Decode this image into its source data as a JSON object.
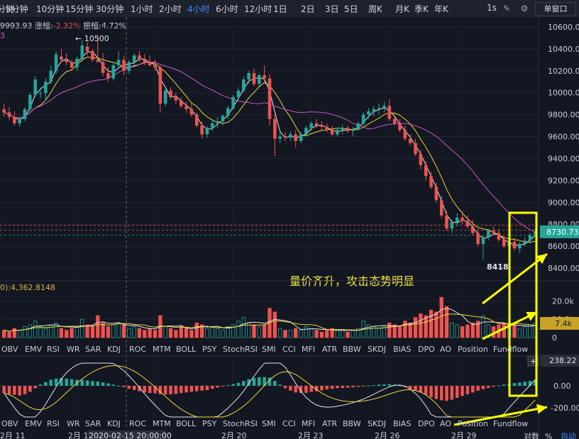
{
  "timeframes": [
    "分钟",
    "5分钟",
    "10分钟",
    "15分钟",
    "30分钟",
    "1小时",
    "2小时",
    "4小时",
    "6小时",
    "12小时",
    "1日",
    "2日",
    "3日",
    "5日",
    "周K",
    "月K",
    "季K",
    "年K"
  ],
  "active_timeframe": "4小时",
  "toolbar": {
    "interval_btn": "1s",
    "single_window": "单窗口"
  },
  "stats": {
    "price": "9993.93",
    "change_label": "涨幅",
    "change": "-2.32%",
    "amp_label": "振幅",
    "amp": "4.72%",
    "partial": "3"
  },
  "price_axis": {
    "ticks": [
      "10600.00",
      "10400.00",
      "10200.00",
      "10000.00",
      "9800.00",
      "9600.00",
      "9400.00",
      "9200.00",
      "9000.00",
      "8800.00",
      "8600.00",
      "8400.00"
    ],
    "current": "8730.73"
  },
  "annotations": {
    "high_label": "← 10500",
    "low_label": "8418",
    "caption": "量价齐升，攻击态势明显"
  },
  "volume": {
    "header": "0):4,362.8148",
    "ticks": [
      "20.0k",
      "10.0k",
      "0"
    ],
    "current": "7.4k"
  },
  "macd": {
    "ticks": [
      "238.22",
      "0.00",
      "-200.00"
    ],
    "current": "238.22"
  },
  "indicator_tabs": [
    "OBV",
    "EMV",
    "RSI",
    "WR",
    "SAR",
    "KDJ",
    "ROC",
    "MTM",
    "BOLL",
    "PSY",
    "StochRSI",
    "SMI",
    "CCI",
    "MFI",
    "ATR",
    "BBW",
    "SKDJ",
    "BIAS",
    "DPO",
    "AO",
    "Position",
    "Fundflow"
  ],
  "date_axis": [
    "2月 11",
    "2月 1",
    "2020-02-15 20:00:00",
    "2月 20",
    "2月 23",
    "2月 26",
    "2月 29"
  ],
  "bottom_right": {
    "a": "对数",
    "b": "%",
    "c": "自动"
  },
  "colors": {
    "up": "#26a69a",
    "down": "#ef5350",
    "ma1": "#e6e6e6",
    "ma2": "#f0d43a",
    "ma3": "#ce53c9",
    "highlight": "#ffff00",
    "active": "#3d8bfd"
  },
  "chart_data": {
    "type": "candlestick",
    "y_range": [
      8300,
      10700
    ],
    "candles": [
      [
        9850,
        9900,
        9780,
        9820
      ],
      [
        9820,
        9870,
        9750,
        9780
      ],
      [
        9780,
        9830,
        9700,
        9720
      ],
      [
        9720,
        9780,
        9690,
        9760
      ],
      [
        9760,
        9870,
        9740,
        9850
      ],
      [
        9850,
        10000,
        9830,
        9980
      ],
      [
        9980,
        10150,
        9960,
        10120
      ],
      [
        9990,
        10050,
        9950,
        9996
      ],
      [
        9996,
        10130,
        9940,
        10100
      ],
      [
        10100,
        10250,
        10080,
        10200
      ],
      [
        10200,
        10380,
        10170,
        10350
      ],
      [
        10330,
        10400,
        10280,
        10300
      ],
      [
        10300,
        10360,
        10250,
        10280
      ],
      [
        10280,
        10300,
        10200,
        10230
      ],
      [
        10230,
        10330,
        10200,
        10310
      ],
      [
        10310,
        10480,
        10280,
        10430
      ],
      [
        10420,
        10460,
        10340,
        10380
      ],
      [
        10380,
        10400,
        10280,
        10300
      ],
      [
        10300,
        10520,
        10280,
        10280
      ],
      [
        10280,
        10360,
        10150,
        10180
      ],
      [
        10180,
        10230,
        10100,
        10130
      ],
      [
        10130,
        10280,
        10110,
        10250
      ],
      [
        10250,
        10380,
        10220,
        10300
      ],
      [
        10300,
        10340,
        10160,
        10200
      ],
      [
        10200,
        10300,
        10170,
        10280
      ],
      [
        10280,
        10360,
        10250,
        10340
      ],
      [
        10340,
        10380,
        10280,
        10300
      ],
      [
        10300,
        10350,
        10250,
        10280
      ],
      [
        10280,
        10340,
        10240,
        10250
      ],
      [
        10250,
        10300,
        10200,
        10230
      ],
      [
        10230,
        10250,
        9820,
        9900
      ],
      [
        9900,
        10050,
        9880,
        10020
      ],
      [
        10020,
        10050,
        9940,
        9960
      ],
      [
        9960,
        10000,
        9900,
        9930
      ],
      [
        9930,
        9960,
        9860,
        9880
      ],
      [
        9880,
        9920,
        9820,
        9850
      ],
      [
        9850,
        9900,
        9780,
        9800
      ],
      [
        9800,
        9820,
        9680,
        9700
      ],
      [
        9700,
        9740,
        9580,
        9620
      ],
      [
        9620,
        9700,
        9590,
        9680
      ],
      [
        9680,
        9760,
        9650,
        9720
      ],
      [
        9720,
        9780,
        9680,
        9740
      ],
      [
        9740,
        9800,
        9700,
        9790
      ],
      [
        9790,
        9880,
        9760,
        9860
      ],
      [
        9860,
        9980,
        9840,
        9960
      ],
      [
        9960,
        10050,
        9930,
        10020
      ],
      [
        10020,
        10150,
        10000,
        10120
      ],
      [
        10120,
        10200,
        10080,
        10180
      ],
      [
        10180,
        10220,
        10060,
        10080
      ],
      [
        10080,
        10180,
        10060,
        10160
      ],
      [
        10160,
        10250,
        10100,
        10130
      ],
      [
        10130,
        10170,
        9700,
        9760
      ],
      [
        9760,
        9800,
        9420,
        9580
      ],
      [
        9580,
        9650,
        9540,
        9600
      ],
      [
        9600,
        9640,
        9560,
        9590
      ],
      [
        9590,
        9650,
        9560,
        9620
      ],
      [
        9620,
        9660,
        9500,
        9560
      ],
      [
        9560,
        9640,
        9540,
        9620
      ],
      [
        9620,
        9700,
        9600,
        9680
      ],
      [
        9680,
        9740,
        9650,
        9720
      ],
      [
        9720,
        9760,
        9680,
        9700
      ],
      [
        9700,
        9740,
        9660,
        9690
      ],
      [
        9690,
        9720,
        9640,
        9660
      ],
      [
        9660,
        9700,
        9600,
        9620
      ],
      [
        9620,
        9680,
        9600,
        9660
      ],
      [
        9660,
        9710,
        9620,
        9680
      ],
      [
        9680,
        9700,
        9630,
        9650
      ],
      [
        9650,
        9690,
        9600,
        9670
      ],
      [
        9670,
        9740,
        9650,
        9720
      ],
      [
        9720,
        9820,
        9700,
        9800
      ],
      [
        9800,
        9860,
        9760,
        9830
      ],
      [
        9830,
        9880,
        9780,
        9850
      ],
      [
        9850,
        9900,
        9800,
        9860
      ],
      [
        9860,
        9920,
        9820,
        9880
      ],
      [
        9880,
        9940,
        9740,
        9760
      ],
      [
        9760,
        9800,
        9700,
        9720
      ],
      [
        9720,
        9760,
        9640,
        9660
      ],
      [
        9660,
        9700,
        9560,
        9580
      ],
      [
        9580,
        9620,
        9520,
        9540
      ],
      [
        9540,
        9580,
        9420,
        9440
      ],
      [
        9440,
        9480,
        9300,
        9340
      ],
      [
        9340,
        9380,
        9200,
        9240
      ],
      [
        9240,
        9280,
        9120,
        9140
      ],
      [
        9140,
        9180,
        9000,
        9020
      ],
      [
        9020,
        9060,
        8860,
        8880
      ],
      [
        8880,
        8920,
        8740,
        8760
      ],
      [
        8760,
        8840,
        8720,
        8820
      ],
      [
        8820,
        8900,
        8780,
        8860
      ],
      [
        8860,
        8920,
        8800,
        8830
      ],
      [
        8830,
        8880,
        8760,
        8780
      ],
      [
        8780,
        8840,
        8700,
        8720
      ],
      [
        8720,
        8760,
        8600,
        8620
      ],
      [
        8620,
        8700,
        8480,
        8680
      ],
      [
        8680,
        8760,
        8650,
        8740
      ],
      [
        8740,
        8780,
        8700,
        8720
      ],
      [
        8720,
        8760,
        8640,
        8660
      ],
      [
        8660,
        8700,
        8580,
        8600
      ],
      [
        8600,
        8660,
        8560,
        8640
      ],
      [
        8640,
        8680,
        8560,
        8580
      ],
      [
        8580,
        8640,
        8540,
        8620
      ],
      [
        8620,
        8680,
        8600,
        8650
      ],
      [
        8650,
        8720,
        8620,
        8700
      ],
      [
        8700,
        8760,
        8690,
        8731
      ]
    ],
    "volumes": [
      4,
      3,
      5,
      4,
      6,
      7,
      9,
      6,
      5,
      7,
      8,
      5,
      4,
      5,
      6,
      10,
      7,
      6,
      12,
      8,
      6,
      7,
      8,
      7,
      5,
      6,
      5,
      4,
      5,
      4,
      12,
      6,
      5,
      4,
      6,
      5,
      4,
      8,
      7,
      5,
      6,
      5,
      4,
      6,
      7,
      9,
      11,
      8,
      7,
      6,
      7,
      16,
      14,
      5,
      4,
      4,
      5,
      4,
      6,
      5,
      4,
      3,
      4,
      5,
      4,
      4,
      3,
      4,
      5,
      9,
      7,
      6,
      5,
      6,
      8,
      7,
      6,
      9,
      8,
      11,
      13,
      12,
      15,
      14,
      22,
      17,
      8,
      7,
      6,
      7,
      8,
      9,
      12,
      7,
      6,
      7,
      8,
      6,
      7,
      5,
      6,
      7,
      8
    ],
    "macd_hist": [
      -60,
      -70,
      -75,
      -80,
      -70,
      -50,
      -20,
      10,
      30,
      50,
      60,
      65,
      60,
      55,
      50,
      48,
      45,
      40,
      35,
      28,
      20,
      10,
      0,
      -10,
      -25,
      -35,
      -45,
      -55,
      -60,
      -62,
      -70,
      -72,
      -70,
      -68,
      -60,
      -55,
      -50,
      -45,
      -40,
      -35,
      -25,
      -15,
      -5,
      5,
      15,
      25,
      40,
      55,
      65,
      70,
      72,
      68,
      40,
      10,
      -20,
      -40,
      -55,
      -60,
      -58,
      -50,
      -45,
      -38,
      -30,
      -25,
      -20,
      -18,
      -15,
      -12,
      -8,
      -4,
      2,
      6,
      10,
      12,
      14,
      10,
      2,
      -10,
      -25,
      -40,
      -55,
      -75,
      -95,
      -110,
      -120,
      -125,
      -115,
      -100,
      -85,
      -70,
      -55,
      -40,
      -28,
      -18,
      -8,
      2,
      10,
      16,
      22,
      28,
      34,
      40,
      46
    ]
  }
}
